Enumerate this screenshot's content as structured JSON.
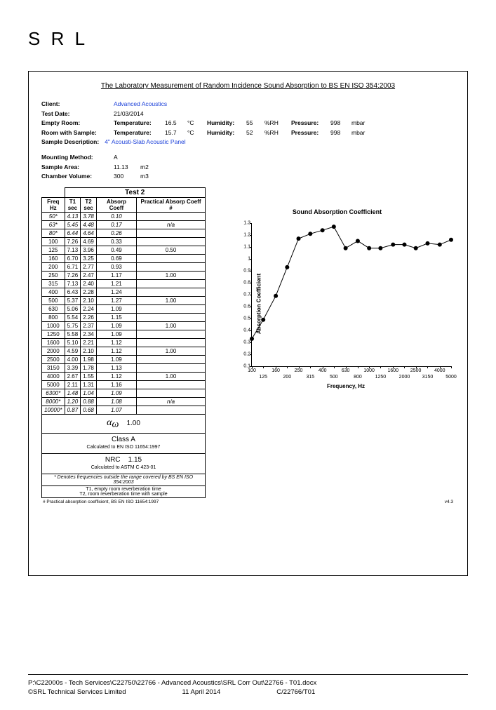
{
  "logo": "S R L",
  "title": "The Laboratory Measurement of Random Incidence Sound Absorption to BS EN ISO 354:2003",
  "meta": {
    "client_lbl": "Client:",
    "client_val": "Advanced Acoustics",
    "testdate_lbl": "Test Date:",
    "testdate_val": "21/03/2014",
    "empty_lbl": "Empty Room:",
    "temp_lbl": "Temperature:",
    "empty_temp": "16.5",
    "sample_lbl": "Room with Sample:",
    "sample_temp": "15.7",
    "temp_unit": "°C",
    "hum_lbl": "Humidity:",
    "empty_hum": "55",
    "sample_hum": "52",
    "hum_unit": "%RH",
    "press_lbl": "Pressure:",
    "empty_press": "998",
    "sample_press": "998",
    "press_unit": "mbar",
    "desc_lbl": "Sample Description:",
    "desc_val": "4\" Acousti-Slab Acoustic Panel",
    "mount_lbl": "Mounting Method:",
    "mount_val": "A",
    "area_lbl": "Sample Area:",
    "area_val": "11.13",
    "area_unit": "m2",
    "vol_lbl": "Chamber Volume:",
    "vol_val": "300",
    "vol_unit": "m3"
  },
  "table": {
    "test_header": "Test 2",
    "col_freq": "Freq",
    "col_freq2": "Hz",
    "col_t1": "T1",
    "col_sec": "sec",
    "col_t2": "T2",
    "col_ac": "Absorp Coeff",
    "col_pac": "Practical Absorp Coeff #",
    "rows": [
      {
        "f": "50*",
        "t1": "4.13",
        "t2": "3.78",
        "ac": "0.10",
        "pac": "",
        "ital": true
      },
      {
        "f": "63*",
        "t1": "5.45",
        "t2": "4.48",
        "ac": "0.17",
        "pac": "n/a",
        "ital": true
      },
      {
        "f": "80*",
        "t1": "6.44",
        "t2": "4.64",
        "ac": "0.26",
        "pac": "",
        "ital": true
      },
      {
        "f": "100",
        "t1": "7.26",
        "t2": "4.69",
        "ac": "0.33",
        "pac": ""
      },
      {
        "f": "125",
        "t1": "7.13",
        "t2": "3.96",
        "ac": "0.49",
        "pac": "0.50"
      },
      {
        "f": "160",
        "t1": "6.70",
        "t2": "3.25",
        "ac": "0.69",
        "pac": ""
      },
      {
        "f": "200",
        "t1": "6.71",
        "t2": "2.77",
        "ac": "0.93",
        "pac": ""
      },
      {
        "f": "250",
        "t1": "7.26",
        "t2": "2.47",
        "ac": "1.17",
        "pac": "1.00"
      },
      {
        "f": "315",
        "t1": "7.13",
        "t2": "2.40",
        "ac": "1.21",
        "pac": ""
      },
      {
        "f": "400",
        "t1": "6.43",
        "t2": "2.28",
        "ac": "1.24",
        "pac": ""
      },
      {
        "f": "500",
        "t1": "5.37",
        "t2": "2.10",
        "ac": "1.27",
        "pac": "1.00"
      },
      {
        "f": "630",
        "t1": "5.06",
        "t2": "2.24",
        "ac": "1.09",
        "pac": ""
      },
      {
        "f": "800",
        "t1": "5.54",
        "t2": "2.26",
        "ac": "1.15",
        "pac": ""
      },
      {
        "f": "1000",
        "t1": "5.75",
        "t2": "2.37",
        "ac": "1.09",
        "pac": "1.00"
      },
      {
        "f": "1250",
        "t1": "5.58",
        "t2": "2.34",
        "ac": "1.09",
        "pac": ""
      },
      {
        "f": "1600",
        "t1": "5.10",
        "t2": "2.21",
        "ac": "1.12",
        "pac": ""
      },
      {
        "f": "2000",
        "t1": "4.59",
        "t2": "2.10",
        "ac": "1.12",
        "pac": "1.00"
      },
      {
        "f": "2500",
        "t1": "4.00",
        "t2": "1.98",
        "ac": "1.09",
        "pac": ""
      },
      {
        "f": "3150",
        "t1": "3.39",
        "t2": "1.78",
        "ac": "1.13",
        "pac": ""
      },
      {
        "f": "4000",
        "t1": "2.67",
        "t2": "1.55",
        "ac": "1.12",
        "pac": "1.00"
      },
      {
        "f": "5000",
        "t1": "2.11",
        "t2": "1.31",
        "ac": "1.16",
        "pac": ""
      },
      {
        "f": "6300*",
        "t1": "1.48",
        "t2": "1.04",
        "ac": "1.09",
        "pac": "",
        "ital": true
      },
      {
        "f": "8000*",
        "t1": "1.20",
        "t2": "0.88",
        "ac": "1.08",
        "pac": "n/a",
        "ital": true
      },
      {
        "f": "10000*",
        "t1": "0.87",
        "t2": "0.68",
        "ac": "1.07",
        "pac": "",
        "ital": true
      }
    ],
    "alpha_sym": "α",
    "alpha_sub": "ω",
    "alpha_val": "1.00",
    "class_val": "Class A",
    "class_note": "Calculated to EN ISO 11654:1997",
    "nrc_lbl": "NRC",
    "nrc_val": "1.15",
    "nrc_note": "Calculated to ASTM C 423-01",
    "denote": "* Denotes frequencies outside the range covered by BS EN ISO 354:2003",
    "t1_note": "T1, empty room reverberation time",
    "t2_note": "T2, room reverberation time with sample"
  },
  "chart": {
    "title": "Sound Absorption Coefficient",
    "ylabel": "Absorption Coefficient",
    "xlabel": "Frequency, Hz",
    "ymin": 0.1,
    "ymax": 1.3,
    "ystep": 0.1,
    "yticks": [
      "0.1",
      "0.2",
      "0.3",
      "0.4",
      "0.5",
      "0.6",
      "0.7",
      "0.8",
      "0.9",
      "1",
      "1.1",
      "1.2",
      "1.3"
    ],
    "xticks_top": [
      "100",
      "160",
      "250",
      "400",
      "630",
      "1000",
      "1600",
      "2500",
      "4000"
    ],
    "xticks_bot": [
      "125",
      "200",
      "315",
      "500",
      "800",
      "1250",
      "2000",
      "3150",
      "5000"
    ],
    "freqs": [
      100,
      125,
      160,
      200,
      250,
      315,
      400,
      500,
      630,
      800,
      1000,
      1250,
      1600,
      2000,
      2500,
      3150,
      4000,
      5000
    ],
    "values": [
      0.33,
      0.49,
      0.69,
      0.93,
      1.17,
      1.21,
      1.24,
      1.27,
      1.09,
      1.15,
      1.09,
      1.09,
      1.12,
      1.12,
      1.09,
      1.13,
      1.12,
      1.16
    ],
    "color": "#000000",
    "line_width": 1,
    "marker_size": 3
  },
  "bottom": {
    "note": "# Practical absorption coefficient, BS EN ISO 11654:1997",
    "ver": "v4.3"
  },
  "footer": {
    "path": "P:\\C22000s - Tech Services\\C22750\\22766 - Advanced Acoustics\\SRL Corr Out\\22766 - T01.docx",
    "copyright": "©SRL Technical Services Limited",
    "date": "11 April 2014",
    "ref": "C/22766/T01"
  }
}
